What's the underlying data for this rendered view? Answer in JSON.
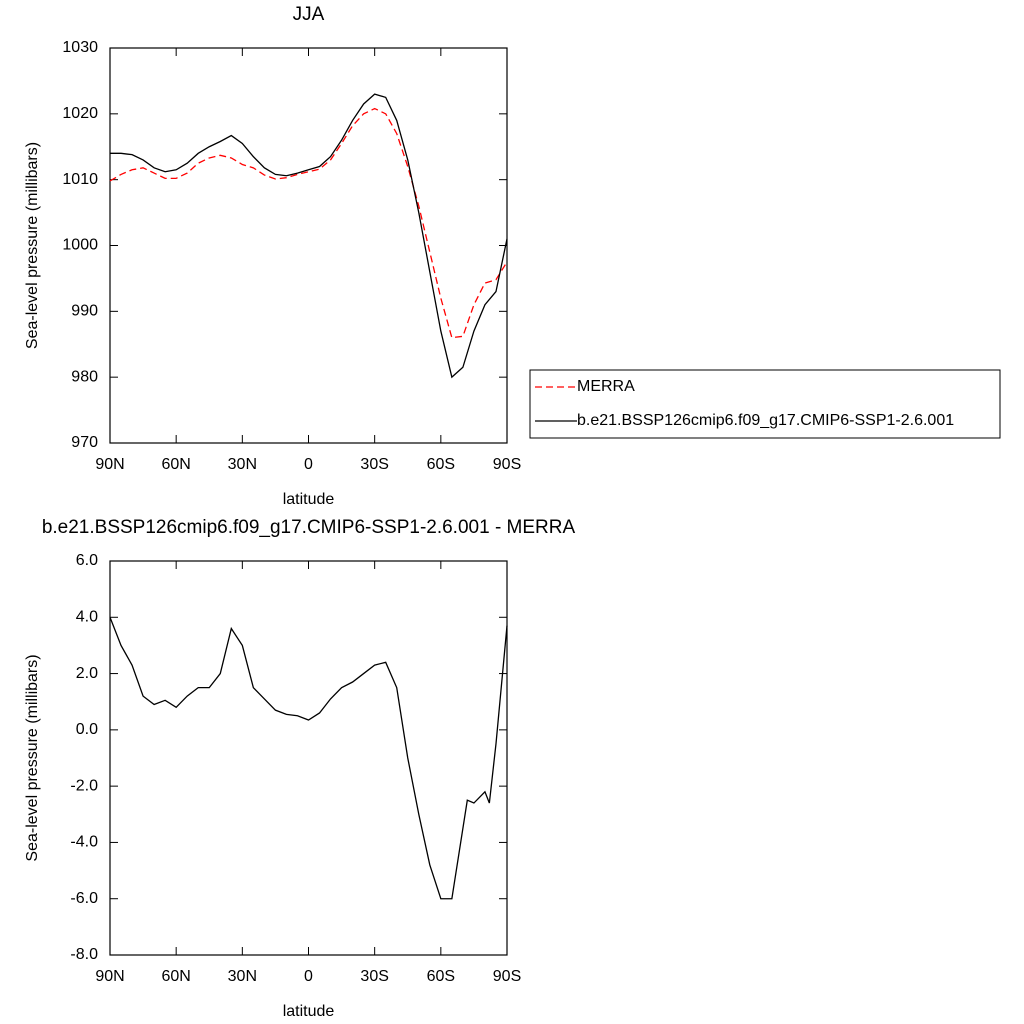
{
  "chart_data": [
    {
      "type": "line",
      "title": "JJA",
      "xlabel": "latitude",
      "ylabel": "Sea-level pressure (millibars)",
      "x": [
        90,
        85,
        80,
        75,
        70,
        65,
        60,
        55,
        50,
        45,
        40,
        35,
        30,
        25,
        20,
        15,
        10,
        5,
        0,
        -5,
        -10,
        -15,
        -20,
        -25,
        -30,
        -35,
        -40,
        -45,
        -50,
        -55,
        -60,
        -65,
        -70,
        -75,
        -80,
        -85,
        -90
      ],
      "xlim": [
        90,
        -90
      ],
      "xticks": [
        {
          "value": 90,
          "label": "90N"
        },
        {
          "value": 60,
          "label": "60N"
        },
        {
          "value": 30,
          "label": "30N"
        },
        0,
        {
          "value": -30,
          "label": "30S"
        },
        {
          "value": -60,
          "label": "60S"
        },
        {
          "value": -90,
          "label": "90S"
        }
      ],
      "ylim": [
        970,
        1030
      ],
      "yticks": [
        970,
        980,
        990,
        1000,
        1010,
        1020,
        1030
      ],
      "legend": "right",
      "series": [
        {
          "name": "MERRA",
          "color": "#ff0000",
          "line_style": "dashed",
          "values": [
            1009.8,
            1010.8,
            1011.5,
            1011.8,
            1011,
            1010.2,
            1010.2,
            1011,
            1012.5,
            1013.3,
            1013.7,
            1013.3,
            1012.3,
            1011.8,
            1010.7,
            1010.1,
            1010.3,
            1010.8,
            1011.2,
            1011.6,
            1013,
            1015.5,
            1018.2,
            1020,
            1020.8,
            1020,
            1017,
            1012,
            1006,
            999,
            992,
            986,
            986.2,
            991,
            994.3,
            994.8,
            997.5
          ]
        },
        {
          "name": "b.e21.BSSP126cmip6.f09_g17.CMIP6-SSP1-2.6.001",
          "color": "#000000",
          "line_style": "solid",
          "values": [
            1014,
            1014,
            1013.8,
            1013,
            1011.8,
            1011.2,
            1011.5,
            1012.5,
            1014,
            1015,
            1015.8,
            1016.7,
            1015.5,
            1013.5,
            1011.8,
            1010.8,
            1010.6,
            1011,
            1011.5,
            1012,
            1013.5,
            1016,
            1019,
            1021.5,
            1023,
            1022.5,
            1019,
            1013,
            1005,
            996,
            987,
            980,
            981.5,
            987,
            991,
            993,
            1001
          ]
        }
      ]
    },
    {
      "type": "line",
      "title": "b.e21.BSSP126cmip6.f09_g17.CMIP6-SSP1-2.6.001 - MERRA",
      "xlabel": "latitude",
      "ylabel": "Sea-level pressure (millibars)",
      "x": [
        90,
        85,
        80,
        75,
        70,
        65,
        60,
        55,
        50,
        45,
        40,
        35,
        30,
        25,
        20,
        15,
        10,
        5,
        0,
        -5,
        -10,
        -15,
        -20,
        -25,
        -30,
        -35,
        -40,
        -45,
        -50,
        -55,
        -60,
        -65,
        -70,
        -72,
        -75,
        -80,
        -82,
        -85,
        -90
      ],
      "xlim": [
        90,
        -90
      ],
      "xticks": [
        {
          "value": 90,
          "label": "90N"
        },
        {
          "value": 60,
          "label": "60N"
        },
        {
          "value": 30,
          "label": "30N"
        },
        0,
        {
          "value": -30,
          "label": "30S"
        },
        {
          "value": -60,
          "label": "60S"
        },
        {
          "value": -90,
          "label": "90S"
        }
      ],
      "ylim": [
        -8,
        6
      ],
      "yticks": [
        {
          "value": -8,
          "label": "-8.0"
        },
        {
          "value": -6,
          "label": "-6.0"
        },
        {
          "value": -4,
          "label": "-4.0"
        },
        {
          "value": -2,
          "label": "-2.0"
        },
        {
          "value": 0,
          "label": "0.0"
        },
        {
          "value": 2,
          "label": "2.0"
        },
        {
          "value": 4,
          "label": "4.0"
        },
        {
          "value": 6,
          "label": "6.0"
        }
      ],
      "series": [
        {
          "color": "#000000",
          "line_style": "solid",
          "values": [
            4.0,
            3.0,
            2.3,
            1.2,
            0.9,
            1.05,
            0.8,
            1.2,
            1.5,
            1.5,
            2.0,
            3.6,
            3.0,
            1.5,
            1.1,
            0.7,
            0.55,
            0.5,
            0.35,
            0.6,
            1.1,
            1.5,
            1.7,
            2.0,
            2.3,
            2.4,
            1.5,
            -1.0,
            -3.0,
            -4.8,
            -6.0,
            -6.0,
            -3.5,
            -2.5,
            -2.6,
            -2.2,
            -2.6,
            -0.5,
            3.7
          ]
        }
      ]
    }
  ]
}
